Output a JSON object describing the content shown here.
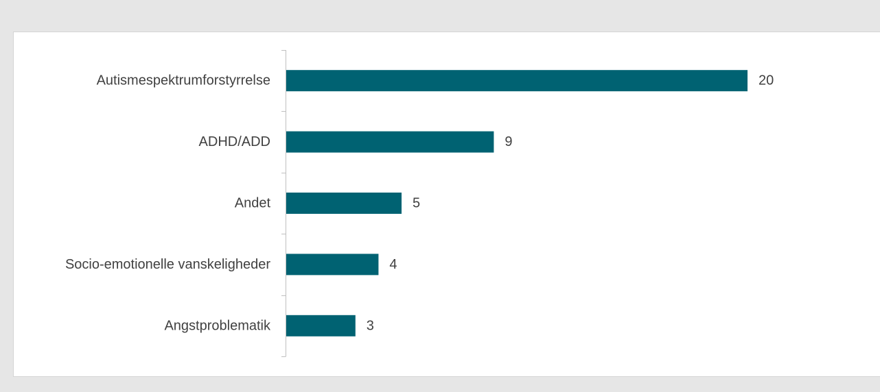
{
  "chart_data": {
    "type": "bar",
    "orientation": "horizontal",
    "categories": [
      "Autismespektrumforstyrrelse",
      "ADHD/ADD",
      "Andet",
      "Socio-emotionelle vanskeligheder",
      "Angstproblematik"
    ],
    "values": [
      20,
      9,
      5,
      4,
      3
    ],
    "xlim": [
      0,
      20
    ],
    "grid": false,
    "legend": "none",
    "bar_color": "#006272"
  }
}
